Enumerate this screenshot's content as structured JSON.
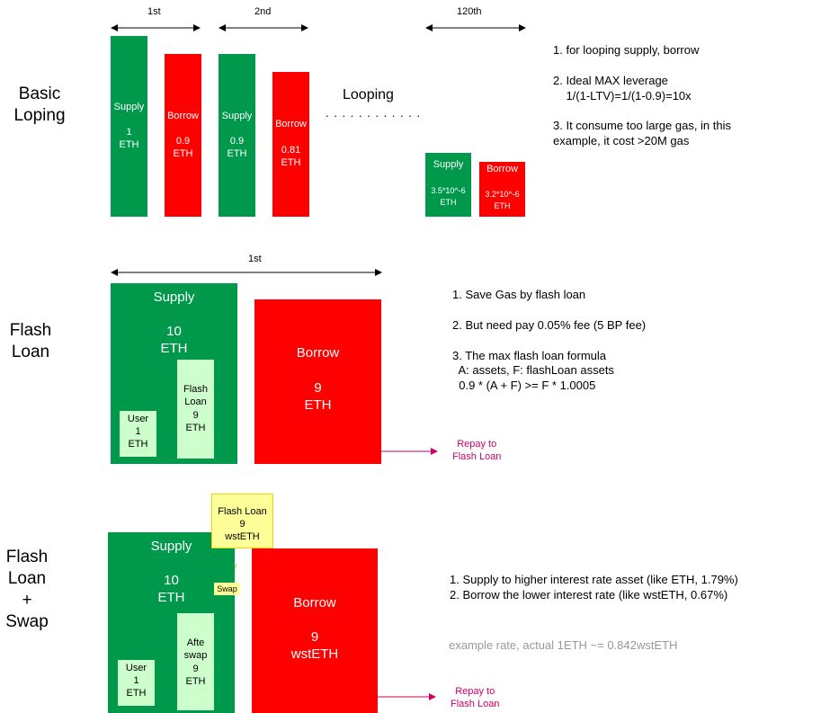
{
  "colors": {
    "supply_green": "#00994c",
    "borrow_red": "#ff0000",
    "user_light_green": "#ccffcc",
    "flash_yellow": "#ffff99",
    "repay_magenta": "#cc0066",
    "gray_note": "#999999"
  },
  "sections": {
    "basic": {
      "title": "Basic\nLoping",
      "labels": {
        "first": "1st",
        "second": "2nd",
        "last": "120th",
        "looping": "Looping",
        "dots": ". . . . . . . . . . . ."
      },
      "bars": [
        {
          "title": "Supply",
          "value": "1\nETH"
        },
        {
          "title": "Borrow",
          "value": "0.9\nETH"
        },
        {
          "title": "Supply",
          "value": "0.9\nETH"
        },
        {
          "title": "Borrow",
          "value": "0.81\nETH"
        },
        {
          "title": "Supply",
          "value": "3.5*10^-6\nETH"
        },
        {
          "title": "Borrow",
          "value": "3.2*10^-6\nETH"
        }
      ],
      "notes": "1. for looping supply, borrow\n\n2. Ideal MAX leverage\n    1/(1-LTV)=1/(1-0.9)=10x\n\n3. It consume too large gas, in this\nexample, it cost >20M gas"
    },
    "flash": {
      "title": "Flash\nLoan",
      "label_first": "1st",
      "supply_title": "Supply",
      "supply_value": "10\nETH",
      "user": "User\n1\nETH",
      "flash_loan": "Flash\nLoan\n9\nETH",
      "borrow_title": "Borrow",
      "borrow_value": "9\nETH",
      "repay": "Repay to\nFlash Loan",
      "notes": "1. Save Gas by flash loan\n\n2. But need pay 0.05% fee (5 BP fee)\n\n3. The max flash loan formula\n  A: assets, F: flashLoan assets\n  0.9 * (A + F) >= F * 1.0005"
    },
    "swap": {
      "title": "Flash\nLoan\n+\nSwap",
      "flash_loan": "Flash Loan\n9\nwstETH",
      "swap_label": "Swap",
      "supply_title": "Supply",
      "supply_value": "10\nETH",
      "user": "User\n1\nETH",
      "after_swap": "Afte\nswap\n9\nETH",
      "borrow_title": "Borrow",
      "borrow_value": "9\nwstETH",
      "repay": "Repay to\nFlash Loan",
      "notes": "1. Supply to higher interest rate asset (like ETH, 1.79%)\n2. Borrow the lower interest rate (like wstETH, 0.67%)",
      "example_note": "example rate, actual 1ETH ~= 0.842wstETH"
    }
  }
}
